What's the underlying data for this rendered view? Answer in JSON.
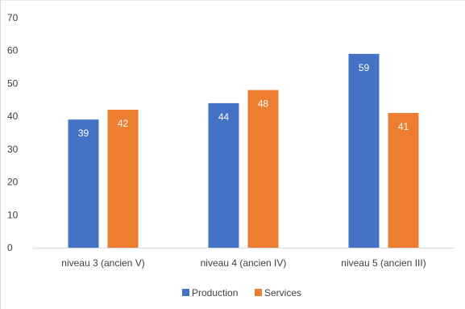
{
  "chart_data": {
    "type": "bar",
    "title": "",
    "xlabel": "",
    "ylabel": "",
    "categories": [
      "niveau 3 (ancien V)",
      "niveau 4 (ancien IV)",
      "niveau 5 (ancien III)"
    ],
    "series": [
      {
        "name": "Production",
        "values": [
          39,
          44,
          59
        ],
        "color": "#4472C4"
      },
      {
        "name": "Services",
        "values": [
          42,
          48,
          41
        ],
        "color": "#ED7D31"
      }
    ],
    "ylim": [
      0,
      70
    ],
    "yticks": [
      "0",
      "10",
      "20",
      "30",
      "40",
      "50",
      "60",
      "70"
    ],
    "grid": false,
    "data_labels": true,
    "legend_position": "bottom"
  }
}
